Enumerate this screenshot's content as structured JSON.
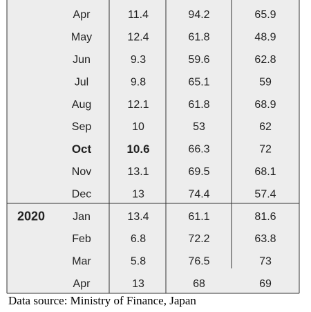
{
  "table": {
    "rows": [
      [
        null,
        "Apr",
        11.4,
        94.2,
        65.9
      ],
      [
        null,
        "May",
        12.4,
        61.8,
        48.9
      ],
      [
        null,
        "Jun",
        9.3,
        59.6,
        62.8
      ],
      [
        null,
        "Jul",
        9.8,
        65.1,
        59
      ],
      [
        null,
        "Aug",
        12.1,
        61.8,
        68.9
      ],
      [
        null,
        "Sep",
        10,
        53,
        62
      ],
      [
        null,
        "Oct",
        10.6,
        66.3,
        72
      ],
      [
        null,
        "Nov",
        13.1,
        69.5,
        68.1
      ],
      [
        null,
        "Dec",
        13,
        74.4,
        57.4
      ],
      [
        "2020",
        "Jan",
        13.4,
        61.1,
        81.6
      ],
      [
        null,
        "Feb",
        6.8,
        72.2,
        63.8
      ],
      [
        null,
        "Mar",
        5.8,
        76.5,
        73
      ],
      [
        null,
        "Apr",
        13,
        68,
        69
      ]
    ]
  },
  "footer": {
    "source": "Data source: Ministry of Finance, Japan"
  }
}
